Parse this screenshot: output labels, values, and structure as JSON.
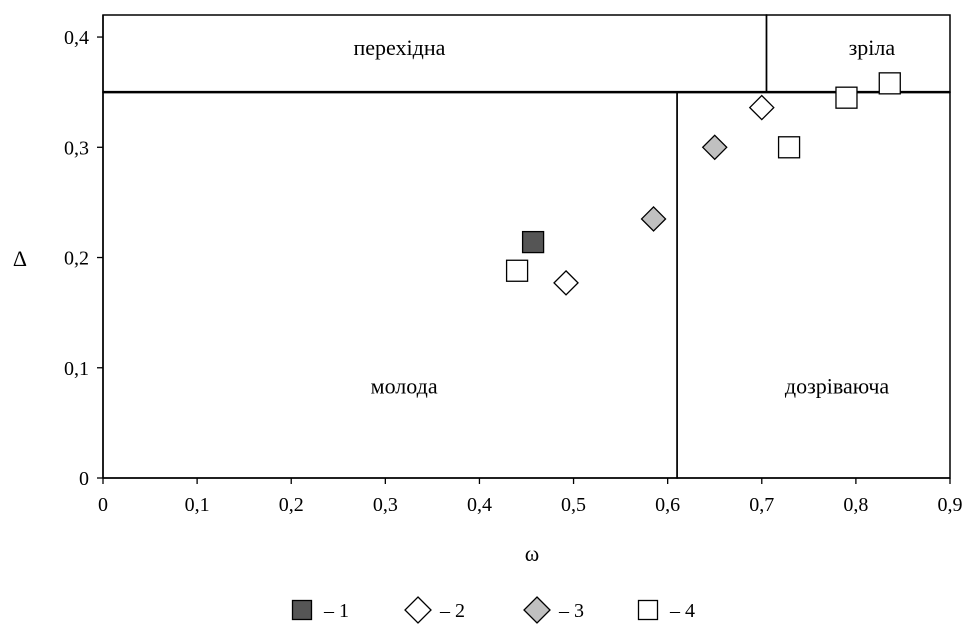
{
  "chart_data": {
    "type": "scatter",
    "xlabel": "ω",
    "ylabel": "Δ",
    "xlim": [
      0,
      0.9
    ],
    "ylim": [
      0,
      0.42
    ],
    "x_ticks": [
      {
        "value": 0,
        "label": "0"
      },
      {
        "value": 0.1,
        "label": "0,1"
      },
      {
        "value": 0.2,
        "label": "0,2"
      },
      {
        "value": 0.3,
        "label": "0,3"
      },
      {
        "value": 0.4,
        "label": "0,4"
      },
      {
        "value": 0.5,
        "label": "0,5"
      },
      {
        "value": 0.6,
        "label": "0,6"
      },
      {
        "value": 0.7,
        "label": "0,7"
      },
      {
        "value": 0.8,
        "label": "0,8"
      },
      {
        "value": 0.9,
        "label": "0,9"
      }
    ],
    "y_ticks": [
      {
        "value": 0,
        "label": "0"
      },
      {
        "value": 0.1,
        "label": "0,1"
      },
      {
        "value": 0.2,
        "label": "0,2"
      },
      {
        "value": 0.3,
        "label": "0,3"
      },
      {
        "value": 0.4,
        "label": "0,4"
      }
    ],
    "regions": [
      {
        "label": "молода",
        "x_range": [
          0,
          0.61
        ],
        "y_range": [
          0,
          0.35
        ],
        "label_at": [
          0.32,
          0.083
        ]
      },
      {
        "label": "дозріваюча",
        "x_range": [
          0.61,
          0.9
        ],
        "y_range": [
          0,
          0.35
        ],
        "label_at": [
          0.78,
          0.083
        ]
      },
      {
        "label": "перехідна",
        "x_range": [
          0,
          0.705
        ],
        "y_range": [
          0.35,
          0.42
        ],
        "label_at": [
          0.315,
          0.39
        ]
      },
      {
        "label": "зріла",
        "x_range": [
          0.705,
          0.9
        ],
        "y_range": [
          0.35,
          0.42
        ],
        "label_at": [
          0.817,
          0.39
        ]
      }
    ],
    "series": [
      {
        "marker": "square",
        "fill": "#555555",
        "points": [
          [
            0.457,
            0.214
          ]
        ]
      },
      {
        "marker": "diamond",
        "fill": "#ffffff",
        "points": [
          [
            0.492,
            0.177
          ],
          [
            0.7,
            0.336
          ]
        ]
      },
      {
        "marker": "diamond",
        "fill": "#c0c0c0",
        "points": [
          [
            0.585,
            0.235
          ],
          [
            0.65,
            0.3
          ]
        ]
      },
      {
        "marker": "square",
        "fill": "#ffffff",
        "points": [
          [
            0.44,
            0.188
          ],
          [
            0.729,
            0.3
          ],
          [
            0.79,
            0.345
          ],
          [
            0.836,
            0.358
          ]
        ]
      }
    ],
    "legend": {
      "placement": "bottom-center",
      "entries": [
        {
          "marker": "square",
          "fill": "#555555",
          "label": "– 1"
        },
        {
          "marker": "diamond",
          "fill": "#ffffff",
          "label": "– 2"
        },
        {
          "marker": "diamond",
          "fill": "#c0c0c0",
          "label": "– 3"
        },
        {
          "marker": "square",
          "fill": "#ffffff",
          "label": "– 4"
        }
      ]
    },
    "grid": false
  }
}
